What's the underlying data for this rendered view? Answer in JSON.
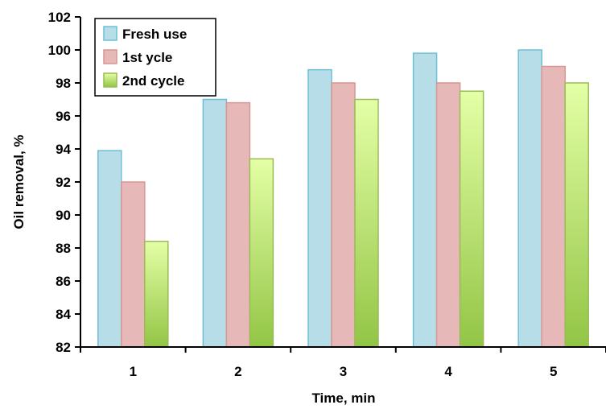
{
  "chart_data": {
    "type": "bar",
    "title": "",
    "xlabel": "Time, min",
    "ylabel": "Oil removal, %",
    "categories": [
      "1",
      "2",
      "3",
      "4",
      "5"
    ],
    "ylim": [
      82,
      102
    ],
    "yticks": [
      "82",
      "84",
      "86",
      "88",
      "90",
      "92",
      "94",
      "96",
      "98",
      "100",
      "102"
    ],
    "legend_position": "top-left",
    "grid": false,
    "series": [
      {
        "name": "Fresh use",
        "values": [
          93.9,
          97.0,
          98.8,
          99.8,
          100.0
        ],
        "color": "#b7dde8",
        "border": "#6cc0d6"
      },
      {
        "name": "1st ycle",
        "values": [
          92.0,
          96.8,
          98.0,
          98.0,
          99.0
        ],
        "color": "#e6b9b8",
        "border": "#d99694"
      },
      {
        "name": "2nd cycle",
        "values": [
          88.4,
          93.4,
          97.0,
          97.5,
          98.0
        ],
        "color": "gradient-green",
        "border": "#9bbb59"
      }
    ]
  }
}
